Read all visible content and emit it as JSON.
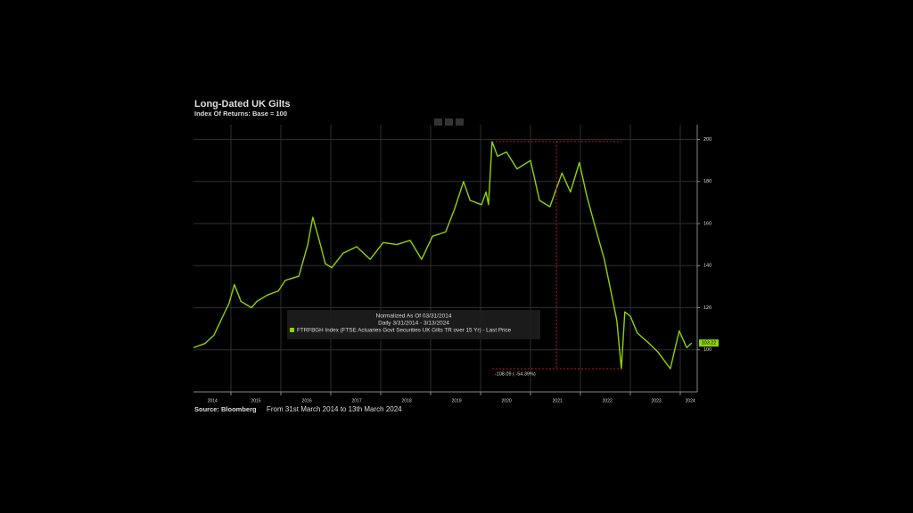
{
  "chart_data": {
    "type": "line",
    "title": "Long-Dated UK Gilts",
    "subtitle": "Index Of Returns: Base = 100",
    "source": "Source: Bloomberg",
    "note": "From 31st March 2014 to 13th March 2024",
    "legend_header": [
      "Normalized As Of 03/31/2014",
      "Daily 3/31/2014 - 3/13/2024"
    ],
    "grid": true,
    "xlim": [
      2014.25,
      2024.34
    ],
    "ylim": [
      80,
      207
    ],
    "xgrid": [
      2015,
      2016,
      2017,
      2018,
      2019,
      2020,
      2021,
      2022,
      2023,
      2024
    ],
    "xticks": [
      {
        "value": 2014.63,
        "label": "2014"
      },
      {
        "value": 2015.5,
        "label": "2015"
      },
      {
        "value": 2016.52,
        "label": "2016"
      },
      {
        "value": 2017.52,
        "label": "2017"
      },
      {
        "value": 2018.52,
        "label": "2018"
      },
      {
        "value": 2019.52,
        "label": "2019"
      },
      {
        "value": 2020.52,
        "label": "2020"
      },
      {
        "value": 2021.54,
        "label": "2021"
      },
      {
        "value": 2022.54,
        "label": "2022"
      },
      {
        "value": 2023.52,
        "label": "2023"
      },
      {
        "value": 2024.2,
        "label": "2024"
      }
    ],
    "yticks": [
      100,
      120,
      140,
      160,
      180,
      200
    ],
    "x": [
      2014.25,
      2014.48,
      2014.66,
      2014.84,
      2014.96,
      2015.07,
      2015.2,
      2015.41,
      2015.52,
      2015.73,
      2015.95,
      2016.09,
      2016.36,
      2016.54,
      2016.64,
      2016.77,
      2016.89,
      2017.02,
      2017.25,
      2017.52,
      2017.79,
      2018.05,
      2018.32,
      2018.59,
      2018.82,
      2019.04,
      2019.3,
      2019.48,
      2019.66,
      2019.79,
      2020.02,
      2020.11,
      2020.16,
      2020.23,
      2020.34,
      2020.52,
      2020.73,
      2021.0,
      2021.18,
      2021.39,
      2021.63,
      2021.8,
      2021.98,
      2022.13,
      2022.3,
      2022.48,
      2022.61,
      2022.73,
      2022.82,
      2022.89,
      2023.0,
      2023.14,
      2023.38,
      2023.55,
      2023.8,
      2023.98,
      2024.13,
      2024.23
    ],
    "series": [
      {
        "name": "FTRFBGH Index (FTSE Actuaries Govt Securities UK Gilts TR over 15 Yr) - Last Price",
        "color": "#8fd400",
        "values": [
          101,
          103,
          107,
          116,
          122,
          131,
          123,
          120,
          123,
          126,
          128,
          133,
          135,
          150,
          163,
          152,
          141,
          139,
          146,
          149,
          143,
          151,
          150,
          152,
          143,
          154,
          156,
          167,
          180,
          171,
          169,
          175,
          169,
          199,
          192,
          194,
          186,
          190,
          171,
          168,
          184,
          175,
          189,
          173,
          158,
          143,
          128,
          114,
          91,
          118,
          116,
          108,
          103,
          99,
          91,
          109,
          101,
          103.22
        ]
      }
    ],
    "last_price": 103.22,
    "drawdown": {
      "label": "-108.09 ( -54.39%)",
      "high": 199,
      "low": 91,
      "x0": 2020.23,
      "x1": 2022.82,
      "xv": 2021.52
    }
  }
}
